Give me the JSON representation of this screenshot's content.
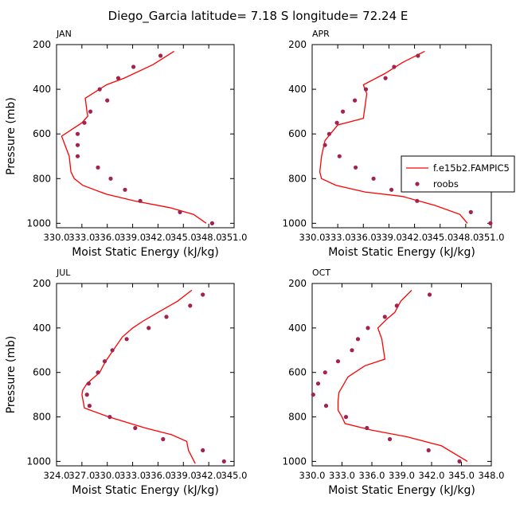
{
  "figure_title": "Diego_Garcia   latitude= 7.18 S longitude= 72.24 E",
  "colors": {
    "model": "#ff0000",
    "obs": "#a3234f",
    "axis": "#000000"
  },
  "chart_data": [
    {
      "type": "line",
      "panel": "JAN",
      "xlabel": "Moist Static Energy (kJ/kg)",
      "ylabel": "Pressure (mb)",
      "xlim": [
        330.0,
        351.0
      ],
      "ylim": [
        200,
        1020
      ],
      "y_inverted": true,
      "xticks": [
        330.0,
        333.0,
        336.0,
        339.0,
        342.0,
        345.0,
        348.0,
        351.0
      ],
      "xtick_labels": [
        "330.0",
        "333.0",
        "336.0",
        "339.0",
        "342.0",
        "345.0",
        "348.0",
        "351.0"
      ],
      "yticks": [
        200,
        400,
        600,
        800,
        1000
      ],
      "series": [
        {
          "name": "f.e15b2.FAMPIC5",
          "kind": "line",
          "x": [
            343.9,
            341.4,
            338.0,
            335.9,
            333.4,
            333.6,
            333.7,
            333.0,
            330.6,
            331.1,
            331.5,
            331.7,
            332.1,
            333.1,
            335.9,
            339.2,
            343.4,
            346.2,
            347.7
          ],
          "y": [
            230,
            290,
            350,
            380,
            440,
            500,
            520,
            550,
            610,
            660,
            700,
            770,
            800,
            830,
            870,
            900,
            930,
            960,
            1000
          ]
        },
        {
          "name": "roobs",
          "kind": "scatter",
          "x": [
            342.3,
            339.1,
            337.3,
            335.1,
            334.0,
            336.0,
            333.3,
            332.5,
            332.5,
            332.5,
            334.9,
            336.4,
            338.1,
            339.9,
            344.6,
            348.4
          ],
          "y": [
            250,
            300,
            350,
            400,
            500,
            450,
            550,
            600,
            650,
            700,
            750,
            800,
            850,
            900,
            950,
            1000
          ]
        }
      ]
    },
    {
      "type": "line",
      "panel": "APR",
      "xlabel": "Moist Static Energy (kJ/kg)",
      "ylabel": "",
      "xlim": [
        330.0,
        351.0
      ],
      "ylim": [
        200,
        1020
      ],
      "y_inverted": true,
      "xticks": [
        330.0,
        333.0,
        336.0,
        339.0,
        342.0,
        345.0,
        348.0,
        351.0
      ],
      "xtick_labels": [
        "330.0",
        "333.0",
        "336.0",
        "339.0",
        "342.0",
        "345.0",
        "348.0",
        "351.0"
      ],
      "yticks": [
        200,
        400,
        600,
        800,
        1000
      ],
      "series": [
        {
          "name": "f.e15b2.FAMPIC5",
          "kind": "line",
          "x": [
            343.2,
            340.6,
            338.5,
            336.0,
            336.4,
            336.0,
            333.0,
            331.5,
            331.1,
            330.9,
            331.1,
            332.8,
            336.2,
            340.6,
            344.4,
            347.3,
            348.2
          ],
          "y": [
            230,
            280,
            330,
            380,
            420,
            530,
            560,
            630,
            700,
            770,
            800,
            830,
            860,
            880,
            920,
            960,
            1000
          ]
        },
        {
          "name": "roobs",
          "kind": "scatter",
          "x": [
            342.4,
            339.6,
            338.6,
            336.3,
            335.0,
            333.6,
            332.9,
            332.0,
            331.5,
            333.2,
            335.1,
            337.2,
            339.3,
            342.3,
            348.6,
            350.9
          ],
          "y": [
            250,
            300,
            350,
            400,
            450,
            500,
            550,
            600,
            650,
            700,
            750,
            800,
            850,
            900,
            950,
            1000
          ]
        }
      ],
      "legend": {
        "position": "right",
        "entries": [
          "f.e15b2.FAMPIC5",
          "roobs"
        ]
      }
    },
    {
      "type": "line",
      "panel": "JUL",
      "xlabel": "Moist Static Energy (kJ/kg)",
      "ylabel": "Pressure (mb)",
      "xlim": [
        324.0,
        345.0
      ],
      "ylim": [
        200,
        1020
      ],
      "y_inverted": true,
      "xticks": [
        324.0,
        327.0,
        330.0,
        333.0,
        336.0,
        339.0,
        342.0,
        345.0
      ],
      "xtick_labels": [
        "324.0",
        "327.0",
        "330.0",
        "333.0",
        "336.0",
        "339.0",
        "342.0",
        "345.0"
      ],
      "yticks": [
        200,
        400,
        600,
        800,
        1000
      ],
      "series": [
        {
          "name": "f.e15b2.FAMPIC5",
          "kind": "line",
          "x": [
            340.0,
            338.3,
            336.0,
            334.2,
            333.0,
            331.8,
            329.8,
            329.1,
            327.6,
            327.1,
            327.0,
            327.3,
            330.2,
            334.5,
            337.6,
            339.4,
            339.6,
            340.4
          ],
          "y": [
            230,
            280,
            330,
            370,
            400,
            440,
            550,
            600,
            650,
            680,
            700,
            760,
            800,
            850,
            880,
            910,
            950,
            1010
          ]
        },
        {
          "name": "roobs",
          "kind": "scatter",
          "x": [
            341.3,
            339.8,
            337.0,
            334.9,
            332.3,
            330.6,
            329.7,
            328.9,
            327.8,
            327.6,
            327.9,
            330.3,
            333.3,
            336.6,
            341.3,
            343.8
          ],
          "y": [
            250,
            300,
            350,
            400,
            450,
            500,
            550,
            600,
            650,
            700,
            750,
            800,
            850,
            900,
            950,
            1000
          ]
        }
      ]
    },
    {
      "type": "line",
      "panel": "OCT",
      "xlabel": "Moist Static Energy (kJ/kg)",
      "ylabel": "",
      "xlim": [
        330.0,
        348.0
      ],
      "ylim": [
        200,
        1020
      ],
      "y_inverted": true,
      "xticks": [
        330.0,
        333.0,
        336.0,
        339.0,
        342.0,
        345.0,
        348.0
      ],
      "xtick_labels": [
        "330.0",
        "333.0",
        "336.0",
        "339.0",
        "342.0",
        "345.0",
        "348.0"
      ],
      "yticks": [
        200,
        400,
        600,
        800,
        1000
      ],
      "series": [
        {
          "name": "f.e15b2.FAMPIC5",
          "kind": "line",
          "x": [
            340.0,
            338.9,
            338.3,
            337.5,
            336.6,
            337.0,
            337.3,
            335.3,
            333.6,
            332.7,
            332.6,
            332.6,
            333.0,
            333.3,
            336.0,
            339.6,
            343.0,
            345.6
          ],
          "y": [
            230,
            280,
            330,
            360,
            400,
            450,
            540,
            570,
            620,
            690,
            730,
            770,
            800,
            830,
            860,
            890,
            930,
            1000
          ]
        },
        {
          "name": "roobs",
          "kind": "scatter",
          "x": [
            341.8,
            338.5,
            337.3,
            335.6,
            334.6,
            334.0,
            332.6,
            331.3,
            330.6,
            330.1,
            331.4,
            333.4,
            335.5,
            337.8,
            341.7,
            344.8
          ],
          "y": [
            250,
            300,
            350,
            400,
            450,
            500,
            550,
            600,
            650,
            700,
            750,
            800,
            850,
            900,
            950,
            1000
          ]
        }
      ]
    }
  ]
}
